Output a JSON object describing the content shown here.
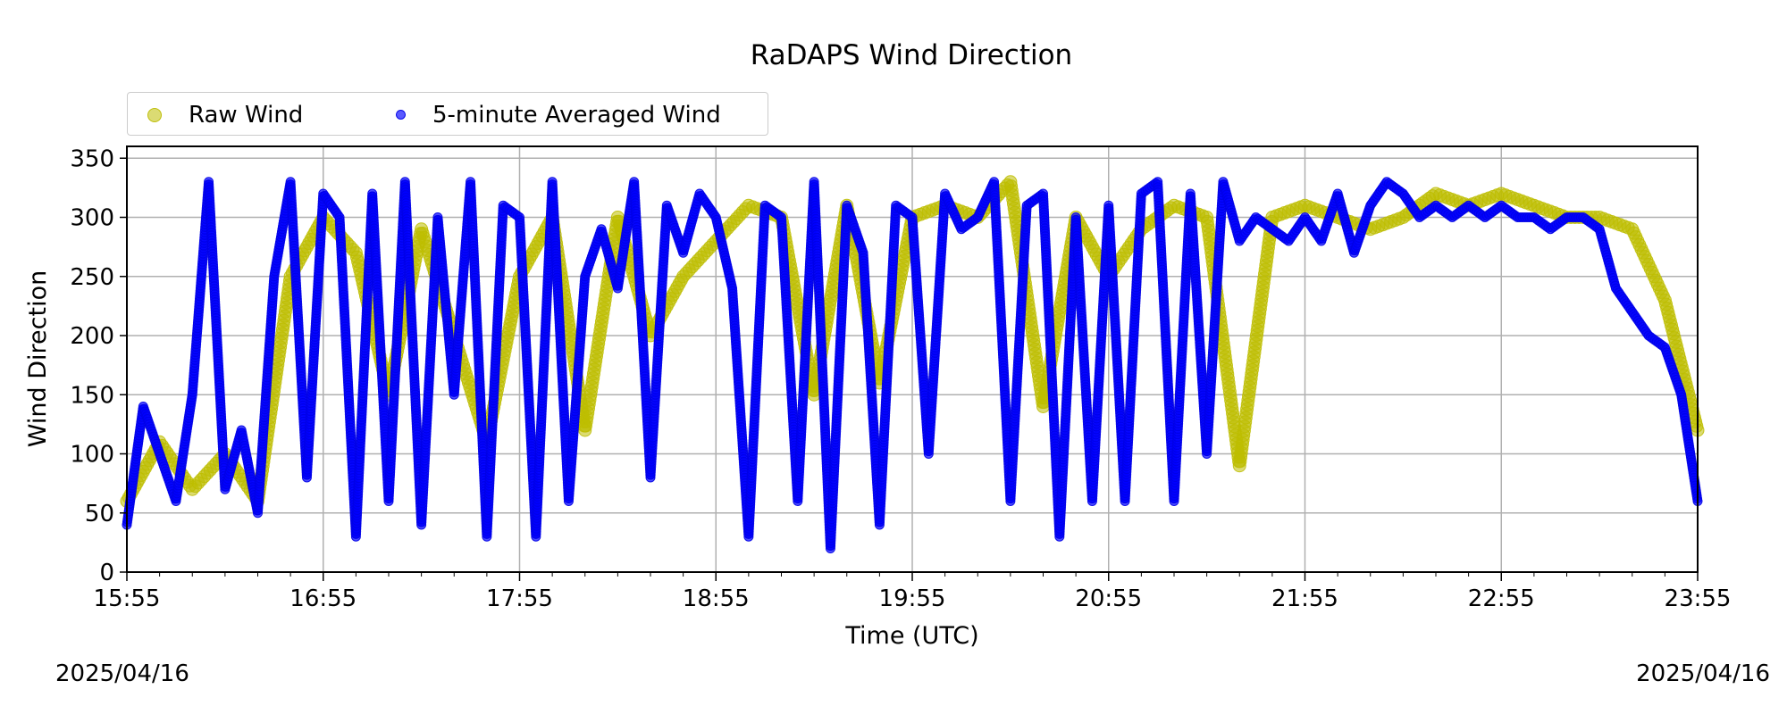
{
  "chart_data": {
    "type": "scatter",
    "title": "RaDAPS Wind Direction",
    "xlabel": "Time (UTC)",
    "ylabel": "Wind Direction",
    "ylim": [
      0,
      360
    ],
    "y_ticks": [
      0,
      50,
      100,
      150,
      200,
      250,
      300,
      350
    ],
    "x_ticks": [
      "15:55",
      "16:55",
      "17:55",
      "18:55",
      "19:55",
      "20:55",
      "21:55",
      "22:55",
      "23:55"
    ],
    "x_range": [
      "15:55",
      "23:55"
    ],
    "date_left": "2025/04/16",
    "date_right": "2025/04/16",
    "grid": true,
    "legend_placement": "top-left (above plot)",
    "series": [
      {
        "name": "Raw Wind",
        "color": "#bdbd00",
        "marker": "large-circle",
        "x_minutes_utc": [
          "15:55",
          "16:05",
          "16:15",
          "16:25",
          "16:35",
          "16:45",
          "16:55",
          "17:05",
          "17:15",
          "17:25",
          "17:35",
          "17:45",
          "17:55",
          "18:05",
          "18:15",
          "18:25",
          "18:35",
          "18:45",
          "18:55",
          "19:05",
          "19:15",
          "19:25",
          "19:35",
          "19:45",
          "19:55",
          "20:05",
          "20:15",
          "20:25",
          "20:35",
          "20:45",
          "20:55",
          "21:05",
          "21:15",
          "21:25",
          "21:35",
          "21:45",
          "21:55",
          "22:05",
          "22:15",
          "22:25",
          "22:35",
          "22:45",
          "22:55",
          "23:05",
          "23:15",
          "23:25",
          "23:35",
          "23:45",
          "23:55"
        ],
        "values": [
          60,
          110,
          70,
          100,
          60,
          250,
          300,
          270,
          150,
          290,
          200,
          110,
          250,
          300,
          120,
          300,
          200,
          250,
          280,
          310,
          300,
          150,
          310,
          160,
          300,
          310,
          300,
          330,
          140,
          300,
          250,
          290,
          310,
          300,
          90,
          300,
          310,
          300,
          290,
          300,
          320,
          310,
          320,
          310,
          300,
          300,
          290,
          230,
          120
        ]
      },
      {
        "name": "5-minute Averaged Wind",
        "color": "#0000ff",
        "marker": "small-circle",
        "x_minutes_utc": [
          "15:55",
          "16:00",
          "16:05",
          "16:10",
          "16:15",
          "16:20",
          "16:25",
          "16:30",
          "16:35",
          "16:40",
          "16:45",
          "16:50",
          "16:55",
          "17:00",
          "17:05",
          "17:10",
          "17:15",
          "17:20",
          "17:25",
          "17:30",
          "17:35",
          "17:40",
          "17:45",
          "17:50",
          "17:55",
          "18:00",
          "18:05",
          "18:10",
          "18:15",
          "18:20",
          "18:25",
          "18:30",
          "18:35",
          "18:40",
          "18:45",
          "18:50",
          "18:55",
          "19:00",
          "19:05",
          "19:10",
          "19:15",
          "19:20",
          "19:25",
          "19:30",
          "19:35",
          "19:40",
          "19:45",
          "19:50",
          "19:55",
          "20:00",
          "20:05",
          "20:10",
          "20:15",
          "20:20",
          "20:25",
          "20:30",
          "20:35",
          "20:40",
          "20:45",
          "20:50",
          "20:55",
          "21:00",
          "21:05",
          "21:10",
          "21:15",
          "21:20",
          "21:25",
          "21:30",
          "21:35",
          "21:40",
          "21:45",
          "21:50",
          "21:55",
          "22:00",
          "22:05",
          "22:10",
          "22:15",
          "22:20",
          "22:25",
          "22:30",
          "22:35",
          "22:40",
          "22:45",
          "22:50",
          "22:55",
          "23:00",
          "23:05",
          "23:10",
          "23:15",
          "23:20",
          "23:25",
          "23:30",
          "23:35",
          "23:40",
          "23:45",
          "23:50",
          "23:55"
        ],
        "values": [
          40,
          140,
          100,
          60,
          150,
          330,
          70,
          120,
          50,
          250,
          330,
          80,
          320,
          300,
          30,
          320,
          60,
          330,
          40,
          300,
          150,
          330,
          30,
          310,
          300,
          30,
          330,
          60,
          250,
          290,
          240,
          330,
          80,
          310,
          270,
          320,
          300,
          240,
          30,
          310,
          300,
          60,
          330,
          20,
          310,
          270,
          40,
          310,
          300,
          100,
          320,
          290,
          300,
          330,
          60,
          310,
          320,
          30,
          300,
          60,
          310,
          60,
          320,
          330,
          60,
          320,
          100,
          330,
          280,
          300,
          290,
          280,
          300,
          280,
          320,
          270,
          310,
          330,
          320,
          300,
          310,
          300,
          310,
          300,
          310,
          300,
          300,
          290,
          300,
          300,
          290,
          240,
          220,
          200,
          190,
          150,
          60
        ]
      }
    ]
  }
}
